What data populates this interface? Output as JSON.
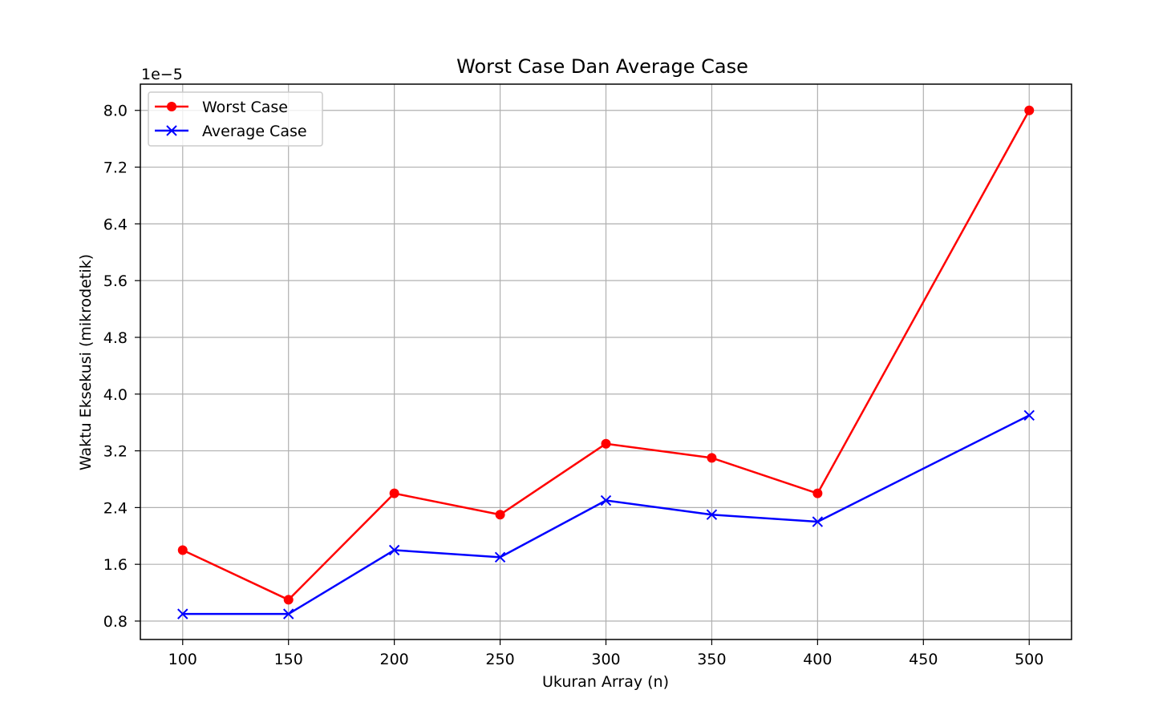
{
  "chart_data": {
    "type": "line",
    "title": "Worst Case Dan Average Case",
    "xlabel": "Ukuran Array (n)",
    "ylabel": "Waktu Eksekusi (mikrodetik)",
    "offset_label": "1e−5",
    "x": [
      100,
      150,
      200,
      250,
      300,
      350,
      400,
      500
    ],
    "xlim": [
      80,
      520
    ],
    "ylim": [
      0.54,
      8.37
    ],
    "xticks": [
      100,
      150,
      200,
      250,
      300,
      350,
      400,
      450,
      500
    ],
    "xtick_labels": [
      "100",
      "150",
      "200",
      "250",
      "300",
      "350",
      "400",
      "450",
      "500"
    ],
    "yticks": [
      0.8,
      1.6,
      2.4,
      3.2,
      4.0,
      4.8,
      5.6,
      6.4,
      7.2,
      8.0
    ],
    "ytick_labels": [
      "0.8",
      "1.6",
      "2.4",
      "3.2",
      "4.0",
      "4.8",
      "5.6",
      "6.4",
      "7.2",
      "8.0"
    ],
    "grid": true,
    "legend_position": "upper-left",
    "series": [
      {
        "name": "Worst Case",
        "color": "#ff0000",
        "marker": "circle",
        "values": [
          1.8,
          1.1,
          2.6,
          2.3,
          3.3,
          3.1,
          2.6,
          8.0
        ]
      },
      {
        "name": "Average Case",
        "color": "#0000ff",
        "marker": "x",
        "values": [
          0.9,
          0.9,
          1.8,
          1.7,
          2.5,
          2.3,
          2.2,
          3.7
        ]
      }
    ]
  }
}
